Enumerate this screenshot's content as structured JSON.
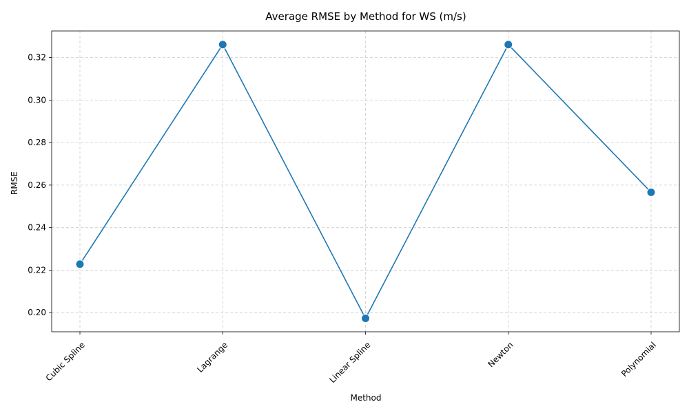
{
  "chart_data": {
    "type": "line",
    "title": "Average RMSE by Method for WS (m/s)",
    "xlabel": "Method",
    "ylabel": "RMSE",
    "categories": [
      "Cubic Spline",
      "Lagrange",
      "Linear Spline",
      "Newton",
      "Polynomial"
    ],
    "values": [
      0.2228,
      0.3261,
      0.1973,
      0.3261,
      0.2566
    ],
    "ylim": [
      0.191,
      0.3325
    ],
    "yticks": [
      0.2,
      0.22,
      0.24,
      0.26,
      0.28,
      0.3,
      0.32
    ],
    "ytick_labels": [
      "0.20",
      "0.22",
      "0.24",
      "0.26",
      "0.28",
      "0.30",
      "0.32"
    ],
    "grid": true,
    "line_color": "#1f77b4",
    "marker_color": "#1f77b4",
    "grid_color": "#cccccc",
    "xtick_rotation_deg": 45
  }
}
